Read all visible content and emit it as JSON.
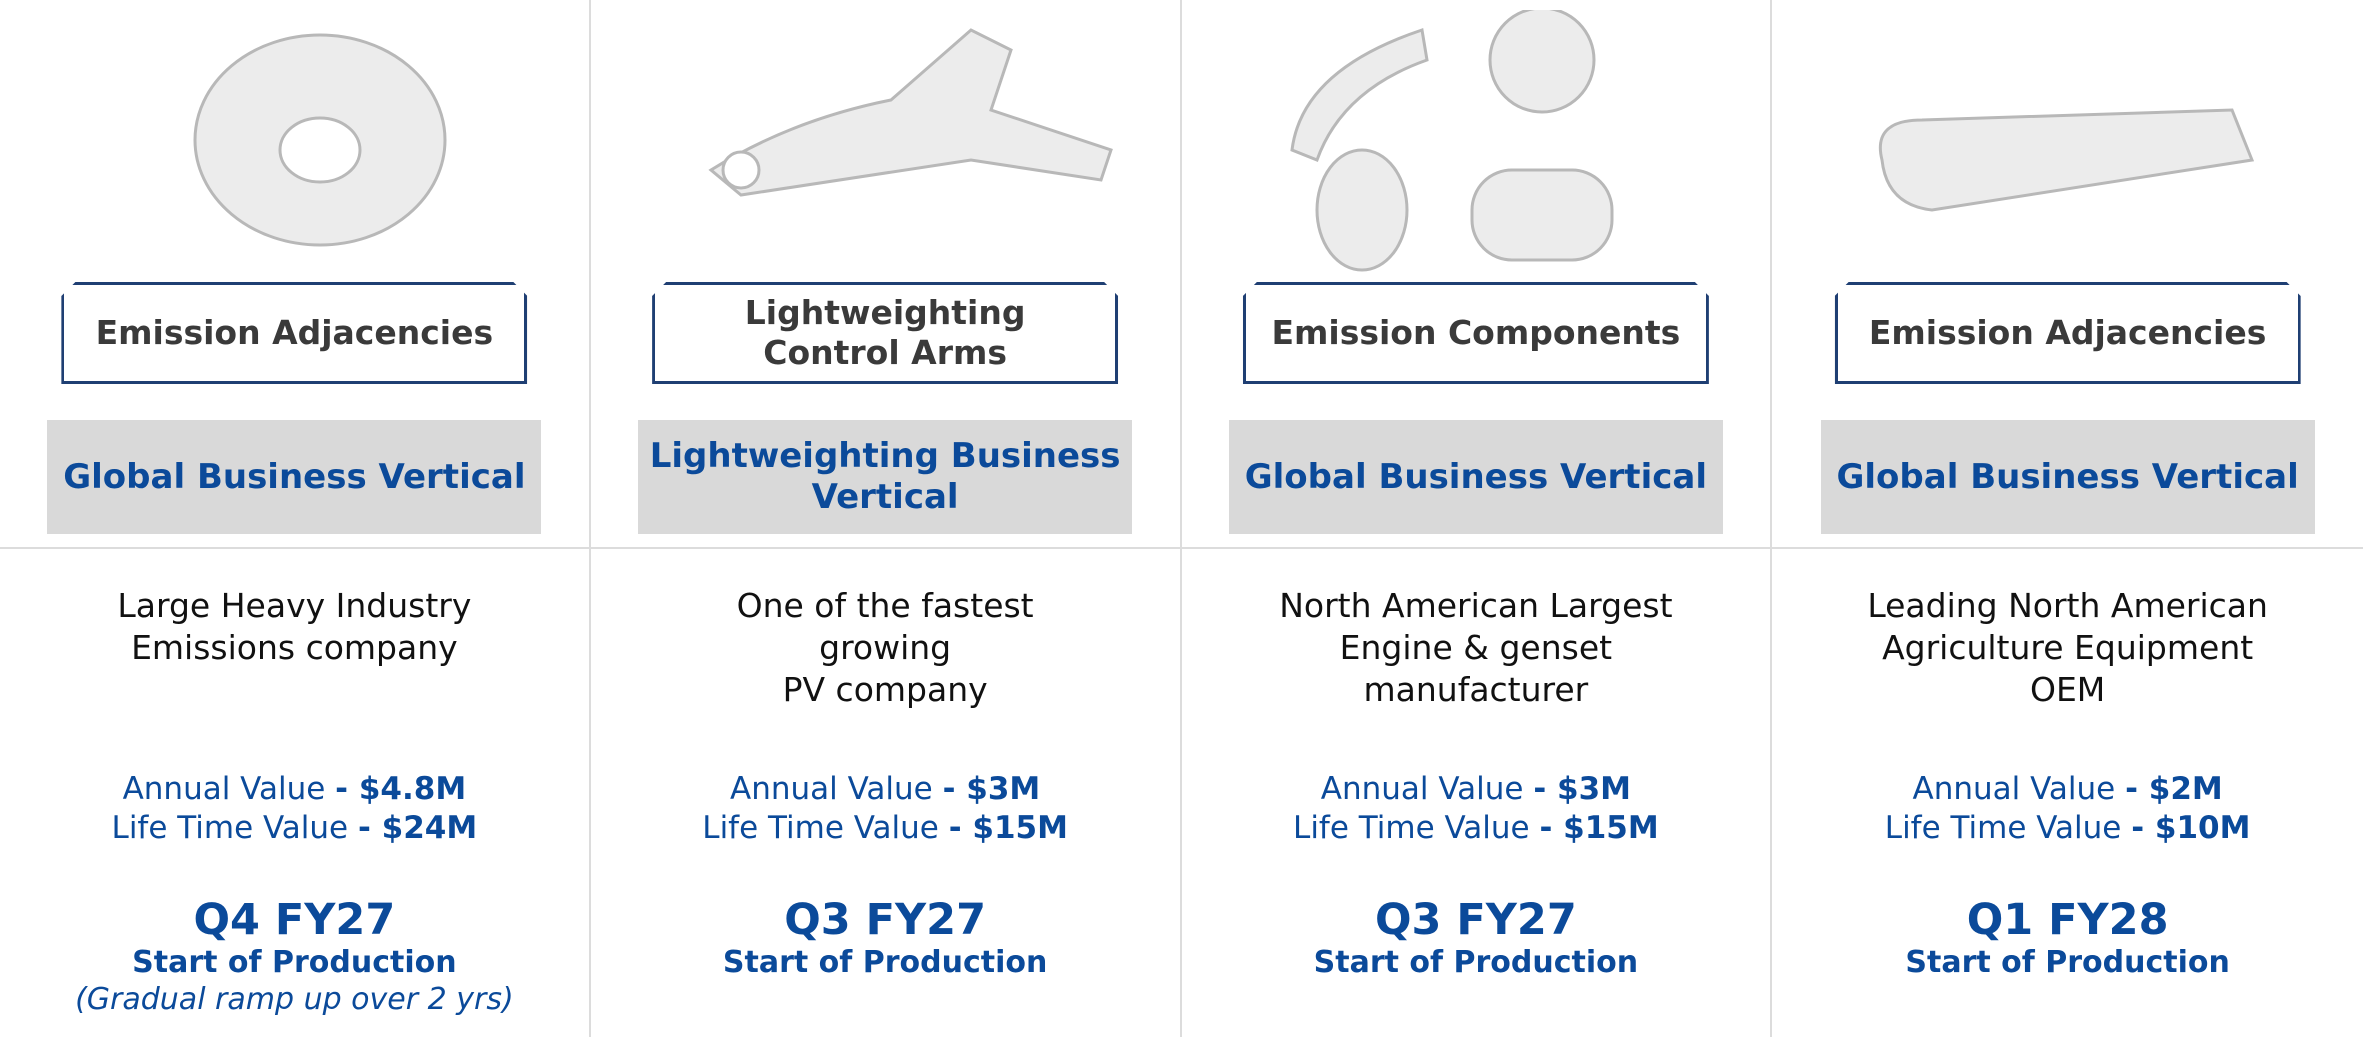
{
  "columns": [
    {
      "tag": [
        "Emission Adjacencies"
      ],
      "vertical": "Global Business Vertical",
      "description": [
        "Large Heavy Industry",
        "Emissions company"
      ],
      "annual_label": "Annual Value",
      "annual_value": "- $4.8M",
      "lifetime_label": "Life Time Value",
      "lifetime_value": "- $24M",
      "quarter": "Q4 FY27",
      "milestone": "Start of Production",
      "note": "(Gradual ramp up over 2 yrs)"
    },
    {
      "tag": [
        "Lightweighting",
        "Control Arms"
      ],
      "vertical": "Lightweighting Business Vertical",
      "description": [
        "One of the fastest",
        "growing",
        "PV company"
      ],
      "annual_label": "Annual Value",
      "annual_value": "- $3M",
      "lifetime_label": "Life Time Value",
      "lifetime_value": "- $15M",
      "quarter": "Q3 FY27",
      "milestone": "Start of Production"
    },
    {
      "tag": [
        "Emission Components"
      ],
      "vertical": "Global Business Vertical",
      "description": [
        "North American Largest",
        "Engine & genset",
        "manufacturer"
      ],
      "annual_label": "Annual Value",
      "annual_value": "- $3M",
      "lifetime_label": "Life Time Value",
      "lifetime_value": "- $15M",
      "quarter": "Q3 FY27",
      "milestone": "Start of Production"
    },
    {
      "tag": [
        "Emission Adjacencies"
      ],
      "vertical": "Global Business Vertical",
      "description": [
        "Leading North American",
        "Agriculture Equipment",
        "OEM"
      ],
      "annual_label": "Annual Value",
      "annual_value": "- $2M",
      "lifetime_label": "Life Time Value",
      "lifetime_value": "- $10M",
      "quarter": "Q1 FY28",
      "milestone": "Start of Production"
    }
  ]
}
